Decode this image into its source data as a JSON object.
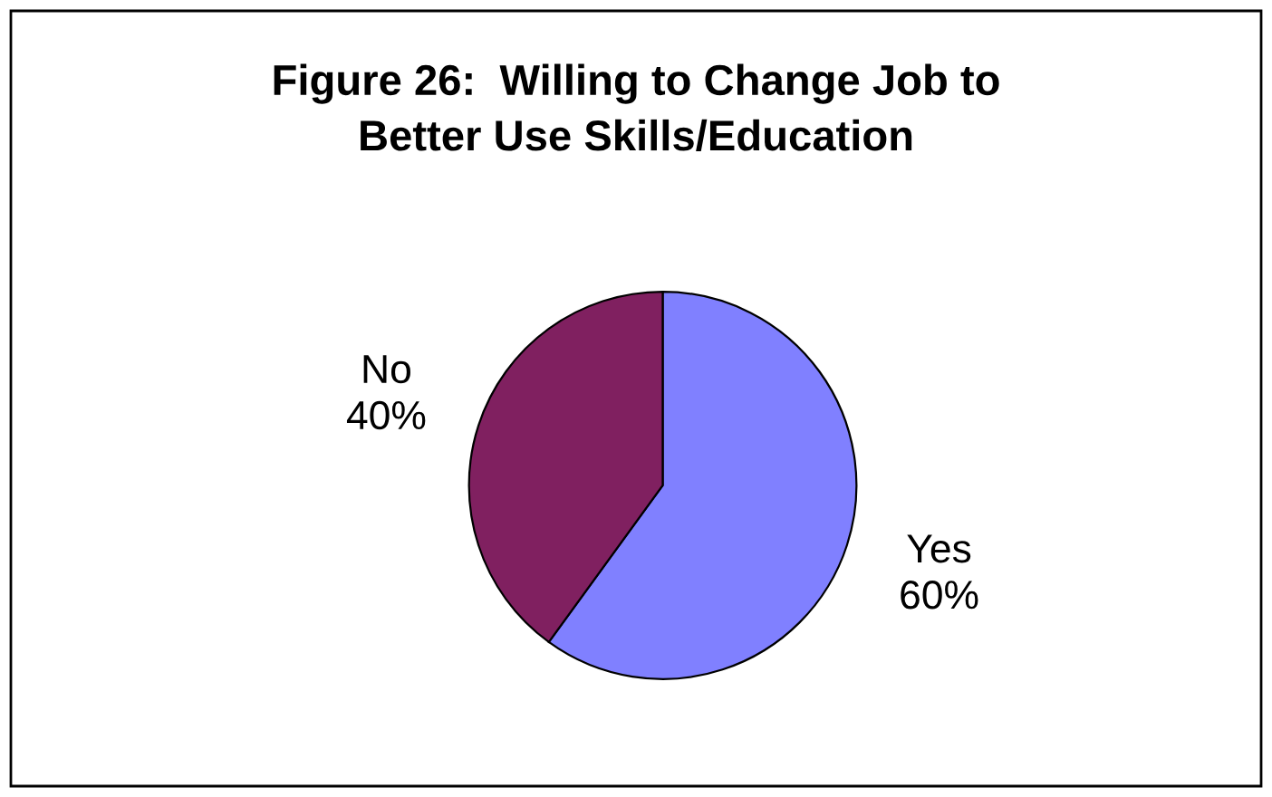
{
  "chart_data": {
    "type": "pie",
    "title": "Figure 26:  Willing to Change Job to\nBetter Use Skills/Education",
    "categories": [
      "Yes",
      "No"
    ],
    "values": [
      60,
      40
    ],
    "value_labels": [
      "60%",
      "40%"
    ],
    "colors": [
      "#8080ff",
      "#802060"
    ],
    "legend": false
  }
}
